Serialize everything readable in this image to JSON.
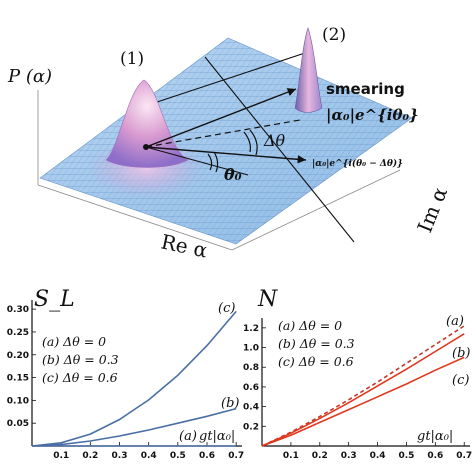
{
  "top": {
    "p_axis_label": "P (α)",
    "peak1_label": "(1)",
    "peak2_label": "(2)",
    "smearing_label": "smearing",
    "alpha0_phase_label": "|α₀|e^{iθ₀}",
    "delta_theta_label": "Δθ",
    "theta0_label": "θ₀",
    "shifted_label": "|α₀|e^{i(θ₀ − Δθ)}",
    "re_axis_label": "Re α",
    "im_axis_label": "Im α"
  },
  "chart_data": [
    {
      "type": "line",
      "title": "S_L",
      "xlabel": "",
      "ylabel": "",
      "xlim": [
        0,
        0.72
      ],
      "ylim": [
        0,
        0.32
      ],
      "x_ticks": [
        "0.1",
        "0.2",
        "0.3",
        "0.4",
        "0.5",
        "0.6",
        "0.7"
      ],
      "y_ticks": [
        "0.05",
        "0.10",
        "0.15",
        "0.20",
        "0.25",
        "0.30"
      ],
      "axis_inset_label": "gt|α₀|",
      "legend_lines": [
        "(a) Δθ = 0",
        "(b) Δθ = 0.3",
        "(c) Δθ = 0.6"
      ],
      "series": [
        {
          "name": "(a)",
          "color": "#4a6fa5",
          "x": [
            0,
            0.1,
            0.2,
            0.3,
            0.4,
            0.5,
            0.6,
            0.7
          ],
          "values": [
            0,
            0,
            0,
            0,
            0,
            0,
            0,
            0
          ]
        },
        {
          "name": "(b)",
          "color": "#4a6fa5",
          "x": [
            0,
            0.1,
            0.2,
            0.3,
            0.4,
            0.5,
            0.6,
            0.7
          ],
          "values": [
            0,
            0.003,
            0.011,
            0.022,
            0.035,
            0.05,
            0.065,
            0.082
          ]
        },
        {
          "name": "(c)",
          "color": "#4a6fa5",
          "x": [
            0,
            0.1,
            0.2,
            0.3,
            0.4,
            0.5,
            0.6,
            0.7
          ],
          "values": [
            0,
            0.007,
            0.026,
            0.058,
            0.101,
            0.155,
            0.22,
            0.295
          ]
        }
      ]
    },
    {
      "type": "line",
      "title": "N",
      "xlabel": "",
      "ylabel": "",
      "xlim": [
        0,
        0.72
      ],
      "ylim": [
        0,
        1.3
      ],
      "x_ticks": [
        "0.1",
        "0.2",
        "0.3",
        "0.4",
        "0.5",
        "0.6",
        "0.7"
      ],
      "y_ticks": [
        "0.2",
        "0.4",
        "0.6",
        "0.8",
        "1.0",
        "1.2"
      ],
      "axis_inset_label": "gt|α₀|",
      "legend_lines": [
        "(a) Δθ = 0",
        "(b) Δθ = 0.3",
        "(c) Δθ = 0.6"
      ],
      "series": [
        {
          "name": "(a)",
          "color": "#c0392b",
          "dashed": true,
          "x": [
            0,
            0.1,
            0.2,
            0.3,
            0.4,
            0.5,
            0.6,
            0.7
          ],
          "values": [
            0,
            0.14,
            0.3,
            0.47,
            0.65,
            0.84,
            1.03,
            1.22
          ]
        },
        {
          "name": "(b)",
          "color": "#e0381e",
          "x": [
            0,
            0.1,
            0.2,
            0.3,
            0.4,
            0.5,
            0.6,
            0.7
          ],
          "values": [
            0,
            0.13,
            0.28,
            0.44,
            0.61,
            0.78,
            0.96,
            1.14
          ]
        },
        {
          "name": "(c)",
          "color": "#e0381e",
          "x": [
            0,
            0.1,
            0.2,
            0.3,
            0.4,
            0.5,
            0.6,
            0.7
          ],
          "values": [
            0,
            0.11,
            0.24,
            0.37,
            0.5,
            0.63,
            0.77,
            0.9
          ]
        }
      ]
    }
  ]
}
